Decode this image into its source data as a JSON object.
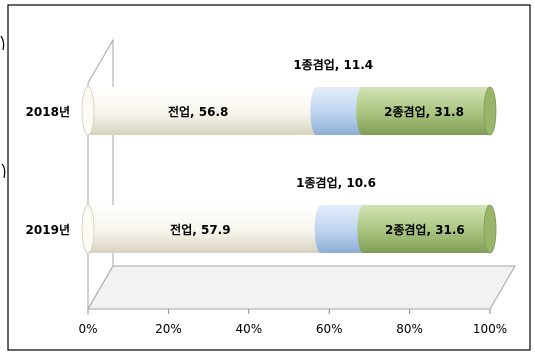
{
  "chart_data": {
    "type": "bar",
    "orientation": "horizontal",
    "stacked": "100%",
    "style": "3d-cylinder",
    "categories": [
      "2018년",
      "2019년"
    ],
    "series": [
      {
        "name": "전업",
        "values": [
          56.8,
          57.9
        ],
        "color": "#f7f5ec"
      },
      {
        "name": "1종겸업",
        "values": [
          11.4,
          10.6
        ],
        "color": "#bcd3ee"
      },
      {
        "name": "2종겸업",
        "values": [
          31.8,
          31.6
        ],
        "color": "#a9c47f"
      }
    ],
    "data_labels": [
      [
        "전업, 56.8",
        "1종겸업, 11.4",
        "2종겸업, 31.8"
      ],
      [
        "전업, 57.9",
        "1종겸업, 10.6",
        "2종겸업, 31.6"
      ]
    ],
    "x_ticks": [
      "0%",
      "20%",
      "40%",
      "60%",
      "80%",
      "100%"
    ],
    "xlim": [
      0,
      100
    ],
    "legend": "none",
    "grid": false
  }
}
